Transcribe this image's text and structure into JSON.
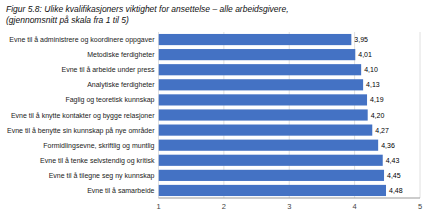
{
  "chart_data": {
    "type": "bar",
    "orientation": "horizontal",
    "title": "Figur 5.8: Ulike kvalifikasjoners viktighet for ansettelse – alle arbeidsgivere,",
    "subtitle": "(gjennomsnitt på skala fra 1 til 5)",
    "categories": [
      "Evne til å administrere og koordinere oppgaver",
      "Metodiske ferdigheter",
      "Evne til å arbeide under press",
      "Analytiske ferdigheter",
      "Faglig og teoretisk kunnskap",
      "Evne til å knytte kontakter og bygge relasjoner",
      "Evne til å benytte sin kunnskap på nye områder",
      "Formidlingsevne, skriftlig og muntlig",
      "Evne til å tenke selvstendig og kritisk",
      "Evne til å tilegne seg ny kunnskap",
      "Evne til å samarbeide"
    ],
    "values": [
      3.95,
      4.01,
      4.1,
      4.13,
      4.19,
      4.2,
      4.27,
      4.36,
      4.43,
      4.45,
      4.48
    ],
    "value_labels": [
      "3,95",
      "4,01",
      "4,10",
      "4,13",
      "4,19",
      "4,20",
      "4,27",
      "4,36",
      "4,43",
      "4,45",
      "4,48"
    ],
    "data_labels": true,
    "color": "#4472C4",
    "xlim": [
      1,
      5
    ],
    "xticks": [
      1,
      2,
      3,
      4,
      5
    ],
    "grid": true
  }
}
